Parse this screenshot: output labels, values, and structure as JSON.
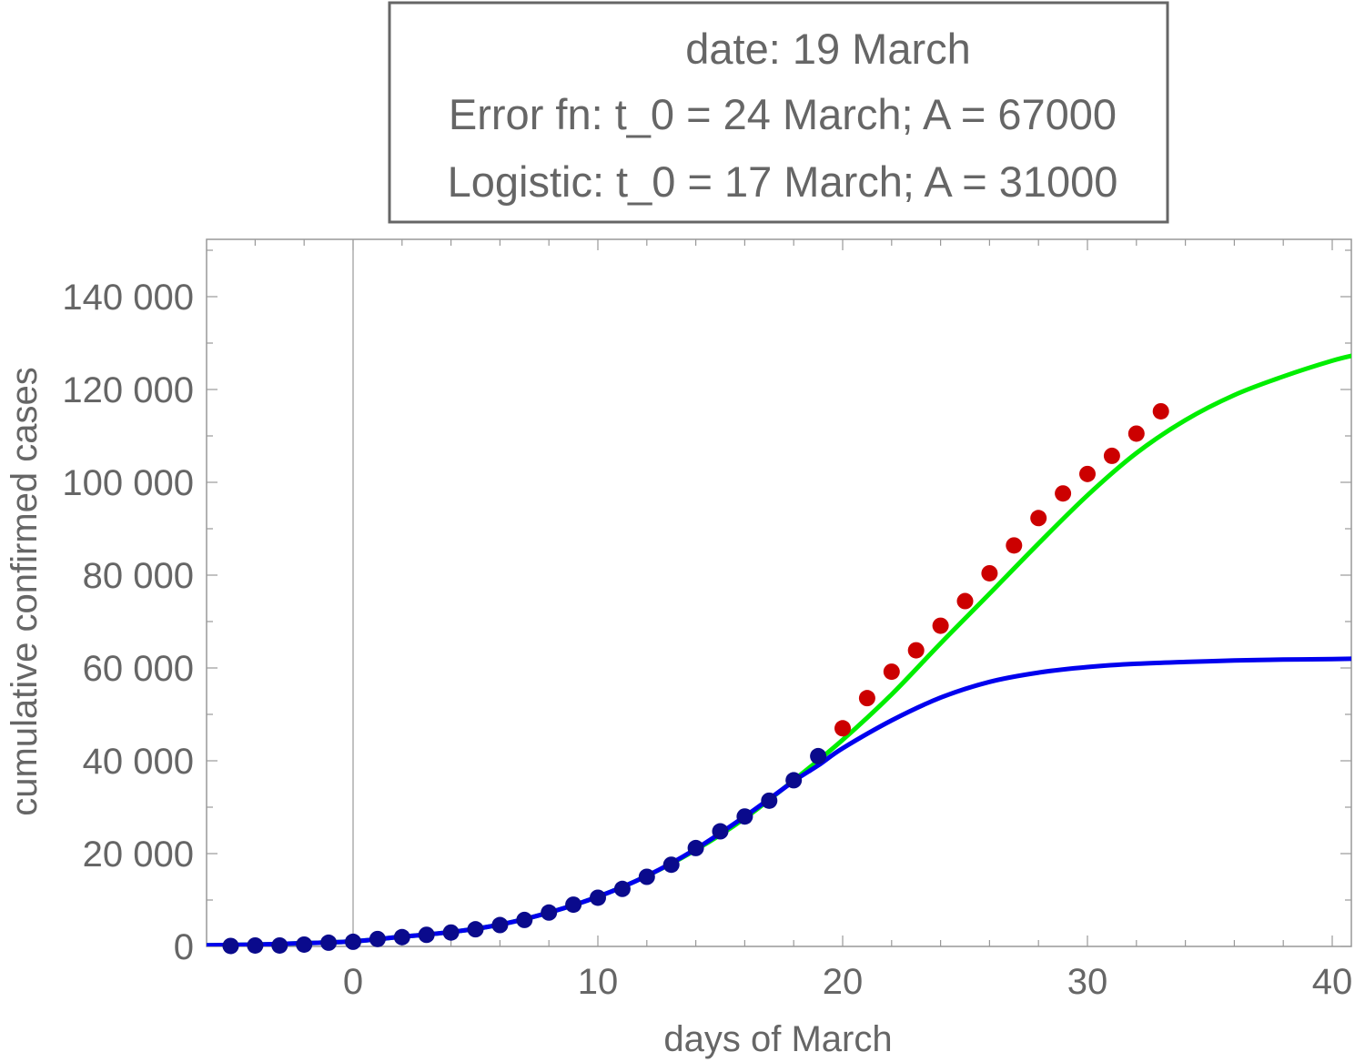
{
  "chart_data": {
    "type": "scatter",
    "xlabel": "days of March",
    "ylabel": "cumulative confirmed cases",
    "xlim": [
      -6,
      41
    ],
    "ylim": [
      0,
      150000
    ],
    "x_ticks": [
      0,
      10,
      20,
      30,
      40
    ],
    "x_tick_labels": [
      "0",
      "10",
      "20",
      "30",
      "40"
    ],
    "y_ticks": [
      0,
      20000,
      40000,
      60000,
      80000,
      100000,
      120000,
      140000
    ],
    "y_tick_labels": [
      "0",
      "20 000",
      "40 000",
      "60 000",
      "80 000",
      "100 000",
      "120 000",
      "140 000"
    ],
    "grid": false,
    "legend": {
      "placement": "top-center",
      "lines": [
        "date: 19 March",
        "Error fn: t_0 = 24 March; A = 67000",
        "Logistic: t_0 = 17 March; A = 31000"
      ]
    },
    "series": [
      {
        "kind": "points",
        "color": "#0a0a8c",
        "x": [
          -5,
          -4,
          -3,
          -2,
          -1,
          0,
          1,
          2,
          3,
          4,
          5,
          6,
          7,
          8,
          9,
          10,
          11,
          12,
          13,
          14,
          15,
          16,
          17,
          18,
          19
        ],
        "values": [
          100,
          200,
          200,
          400,
          800,
          1000,
          1600,
          2000,
          2500,
          3000,
          3700,
          4600,
          5700,
          7300,
          9000,
          10500,
          12400,
          15000,
          17600,
          21200,
          24800,
          28000,
          31400,
          35800,
          41000
        ]
      },
      {
        "kind": "points",
        "color": "#cc0000",
        "x": [
          20,
          21,
          22,
          23,
          24,
          25,
          26,
          27,
          28,
          29,
          30,
          31,
          32,
          33
        ],
        "values": [
          47000,
          53500,
          59200,
          63800,
          69100,
          74400,
          80400,
          86400,
          92300,
          97600,
          101800,
          105700,
          110500,
          115300
        ]
      },
      {
        "kind": "curve",
        "color": "#00ee00",
        "x": [
          -6,
          -4,
          -2,
          0,
          2,
          4,
          6,
          8,
          10,
          12,
          14,
          16,
          18,
          20,
          22,
          24,
          26,
          28,
          30,
          32,
          34,
          36,
          38,
          40,
          41
        ],
        "values": [
          250,
          400,
          700,
          1100,
          2100,
          3100,
          4700,
          7300,
          10700,
          15200,
          20800,
          27600,
          35800,
          44500,
          54300,
          65300,
          76000,
          86800,
          97200,
          106300,
          113400,
          118800,
          122800,
          126200,
          127500
        ]
      },
      {
        "kind": "curve",
        "color": "#0000ee",
        "x": [
          -6,
          -4,
          -2,
          0,
          2,
          4,
          6,
          8,
          10,
          12,
          14,
          16,
          18,
          19,
          20,
          22,
          24,
          26,
          28,
          30,
          32,
          34,
          36,
          38,
          40,
          41
        ],
        "values": [
          250,
          400,
          700,
          1100,
          2100,
          3100,
          4700,
          7300,
          10700,
          15200,
          21000,
          28000,
          35600,
          39000,
          42700,
          48700,
          53600,
          57000,
          59000,
          60200,
          60900,
          61300,
          61600,
          61800,
          61900,
          62000
        ]
      }
    ]
  }
}
